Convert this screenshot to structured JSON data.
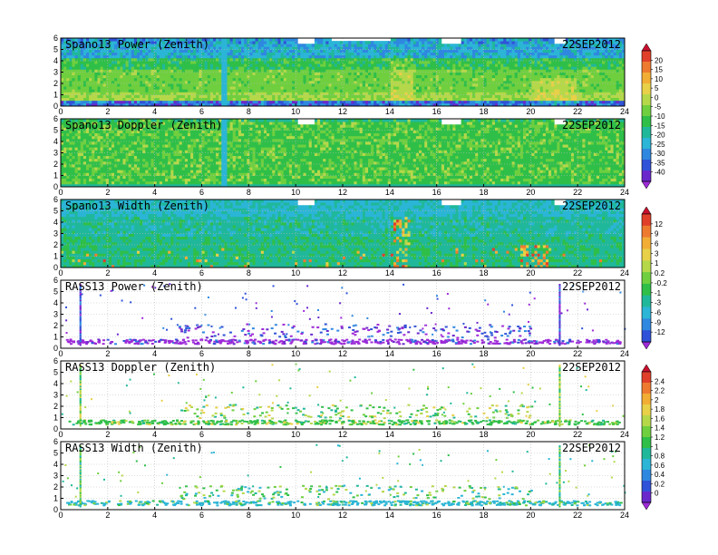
{
  "date_label": "22SEP2012",
  "chart_data": [
    {
      "type": "heatmap",
      "title": "Spano13 Power (Zenith)",
      "field": "power",
      "x_ticks": [
        "0",
        "2",
        "4",
        "6",
        "8",
        "10",
        "12",
        "14",
        "16",
        "18",
        "20",
        "22",
        "24"
      ],
      "y_ticks": [
        "0",
        "1",
        "2",
        "3",
        "4",
        "5",
        "6"
      ],
      "xlim": [
        0,
        24
      ],
      "ylim": [
        0,
        6
      ],
      "grid": true,
      "colorbar": "cb1"
    },
    {
      "type": "heatmap",
      "title": "Spano13 Doppler (Zenith)",
      "field": "doppler",
      "x_ticks": [
        "0",
        "2",
        "4",
        "6",
        "8",
        "10",
        "12",
        "14",
        "16",
        "18",
        "20",
        "22",
        "24"
      ],
      "y_ticks": [
        "0",
        "1",
        "2",
        "3",
        "4",
        "5",
        "6"
      ],
      "xlim": [
        0,
        24
      ],
      "ylim": [
        0,
        6
      ],
      "grid": true,
      "colorbar": "cb1"
    },
    {
      "type": "heatmap",
      "title": "Spano13 Width (Zenith)",
      "field": "width",
      "x_ticks": [
        "0",
        "2",
        "4",
        "6",
        "8",
        "10",
        "12",
        "14",
        "16",
        "18",
        "20",
        "22",
        "24"
      ],
      "y_ticks": [
        "0",
        "1",
        "2",
        "3",
        "4",
        "5",
        "6"
      ],
      "xlim": [
        0,
        24
      ],
      "ylim": [
        0,
        6
      ],
      "grid": true,
      "colorbar": "cb2"
    },
    {
      "type": "scatter",
      "title": "RASS13 Power (Zenith)",
      "field": "rass_power",
      "x_ticks": [
        "0",
        "2",
        "4",
        "6",
        "8",
        "10",
        "12",
        "14",
        "16",
        "18",
        "20",
        "22",
        "24"
      ],
      "y_ticks": [
        "0",
        "1",
        "2",
        "3",
        "4",
        "5",
        "6"
      ],
      "xlim": [
        0,
        24
      ],
      "ylim": [
        0,
        6
      ],
      "grid": true,
      "colorbar": "cb2"
    },
    {
      "type": "scatter",
      "title": "RASS13 Doppler (Zenith)",
      "field": "rass_doppler",
      "x_ticks": [
        "0",
        "2",
        "4",
        "6",
        "8",
        "10",
        "12",
        "14",
        "16",
        "18",
        "20",
        "22",
        "24"
      ],
      "y_ticks": [
        "0",
        "1",
        "2",
        "3",
        "4",
        "5",
        "6"
      ],
      "xlim": [
        0,
        24
      ],
      "ylim": [
        0,
        6
      ],
      "grid": true,
      "colorbar": "cb3"
    },
    {
      "type": "scatter",
      "title": "RASS13 Width (Zenith)",
      "field": "rass_width",
      "x_ticks": [
        "0",
        "2",
        "4",
        "6",
        "8",
        "10",
        "12",
        "14",
        "16",
        "18",
        "20",
        "22",
        "24"
      ],
      "y_ticks": [
        "0",
        "1",
        "2",
        "3",
        "4",
        "5",
        "6"
      ],
      "xlim": [
        0,
        24
      ],
      "ylim": [
        0,
        6
      ],
      "grid": true,
      "colorbar": "cb3"
    }
  ],
  "colorbars": {
    "cb1": {
      "labels": [
        "20",
        "15",
        "10",
        "5",
        "0",
        "-5",
        "-10",
        "-15",
        "-20",
        "-25",
        "-30",
        "-35",
        "-40"
      ],
      "colors": [
        "#c8102e",
        "#e0402a",
        "#ee7a30",
        "#f2ad35",
        "#e8d048",
        "#b5d84a",
        "#6fcf3f",
        "#2fbf49",
        "#20b89a",
        "#2bb5d6",
        "#2f88e0",
        "#3052d8",
        "#6a28cc",
        "#9e2ad8"
      ]
    },
    "cb2": {
      "labels": [
        "12",
        "9",
        "6",
        "3",
        "1",
        "0.2",
        "-0.2",
        "-1",
        "-3",
        "-6",
        "-9",
        "-12"
      ],
      "colors": [
        "#c8102e",
        "#e0402a",
        "#ee7a30",
        "#f2ad35",
        "#e8d048",
        "#b5d84a",
        "#6fcf3f",
        "#2fbf49",
        "#20b89a",
        "#2bb5d6",
        "#2f88e0",
        "#3052d8",
        "#9e2ad8"
      ]
    },
    "cb3": {
      "labels": [
        "2.4",
        "2.2",
        "2",
        "1.8",
        "1.6",
        "1.4",
        "1.2",
        "1",
        "0.8",
        "0.6",
        "0.4",
        "0.2",
        "0"
      ],
      "colors": [
        "#c8102e",
        "#e0402a",
        "#ee7a30",
        "#f2ad35",
        "#e8d048",
        "#b5d84a",
        "#6fcf3f",
        "#2fbf49",
        "#20b89a",
        "#2bb5d6",
        "#2f88e0",
        "#3052d8",
        "#6a28cc",
        "#9e2ad8"
      ]
    }
  }
}
